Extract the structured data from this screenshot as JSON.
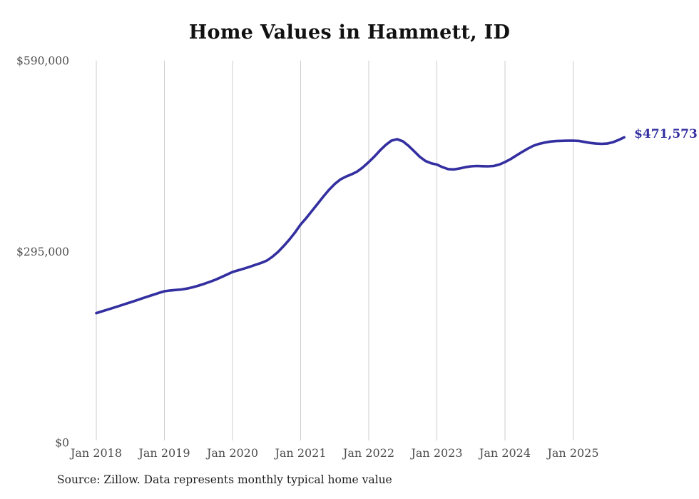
{
  "title": "Home Values in Hammett, ID",
  "source_note": "Source: Zillow. Data represents monthly typical home value",
  "end_label": "$471,573",
  "colors": {
    "line": "#332fa0",
    "end_label_text": "#332fa0",
    "grid": "#cccccc",
    "axis_text": "#4d4d4d",
    "title_text": "#111111",
    "source_text": "#1f1f1f"
  },
  "chart_data": {
    "type": "line",
    "title": "Home Values in Hammett, ID",
    "xlabel": "",
    "ylabel": "",
    "x_start": "Jan 2018",
    "x_end": "Oct 2025",
    "x_frequency": "monthly",
    "x_tick_labels": [
      "Jan 2018",
      "Jan 2019",
      "Jan 2020",
      "Jan 2021",
      "Jan 2022",
      "Jan 2023",
      "Jan 2024",
      "Jan 2025"
    ],
    "y_ticks": [
      {
        "label": "$0",
        "value": 0
      },
      {
        "label": "$295,000",
        "value": 295000
      },
      {
        "label": "$590,000",
        "value": 590000
      }
    ],
    "ylim": [
      0,
      590000
    ],
    "grid": "vertical-only",
    "legend": "none",
    "end_annotation": {
      "text": "$471,573",
      "value": 471573
    },
    "series": [
      {
        "name": "Monthly typical home value",
        "values": [
          200000,
          202800,
          205500,
          208200,
          211000,
          213800,
          216700,
          219600,
          222500,
          225400,
          228300,
          231200,
          233800,
          235000,
          235800,
          236600,
          238000,
          240000,
          242500,
          245300,
          248300,
          251700,
          255500,
          259500,
          263600,
          266200,
          268800,
          271500,
          274500,
          277500,
          281000,
          287000,
          294500,
          303500,
          313500,
          324500,
          337000,
          347000,
          358000,
          369000,
          380000,
          390500,
          399500,
          406500,
          411000,
          414500,
          419000,
          425500,
          433400,
          442000,
          451500,
          460000,
          466500,
          468700,
          465500,
          458500,
          450000,
          441500,
          435000,
          431500,
          429500,
          425500,
          422500,
          422000,
          423500,
          425500,
          426800,
          427300,
          427000,
          426800,
          427300,
          429500,
          433400,
          438000,
          443500,
          449000,
          454000,
          458500,
          461500,
          463500,
          465000,
          465800,
          466200,
          466400,
          466500,
          466000,
          464500,
          463000,
          462000,
          461500,
          462000,
          464000,
          467500,
          471573
        ]
      }
    ]
  }
}
